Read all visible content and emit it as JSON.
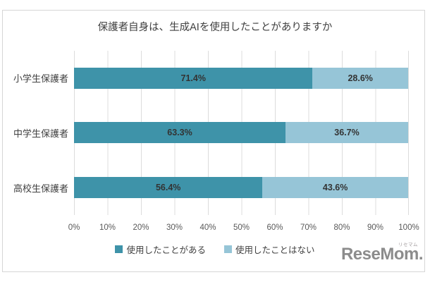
{
  "chart_data": {
    "type": "bar",
    "orientation": "horizontal-stacked",
    "title": "保護者自身は、生成AIを使用したことがありますか",
    "categories": [
      "小学生保護者",
      "中学生保護者",
      "高校生保護者"
    ],
    "series": [
      {
        "name": "使用したことがある",
        "color": "#3e93a9",
        "values": [
          71.4,
          63.3,
          56.4
        ]
      },
      {
        "name": "使用したことはない",
        "color": "#96c5d7",
        "values": [
          28.6,
          36.7,
          43.6
        ]
      }
    ],
    "value_suffix": "%",
    "xlim": [
      0,
      100
    ],
    "x_ticks": [
      "0%",
      "10%",
      "20%",
      "30%",
      "40%",
      "50%",
      "60%",
      "70%",
      "80%",
      "90%",
      "100%"
    ],
    "grid": true,
    "legend_position": "bottom",
    "colors": {
      "gridline": "#dcdcdc",
      "frame_border": "#d6d6d6",
      "title_text": "#404040",
      "tick_text": "#595959",
      "data_label_text": "#333333"
    }
  },
  "logo": {
    "text": "ReseMom.",
    "ruby": "リセマム"
  }
}
